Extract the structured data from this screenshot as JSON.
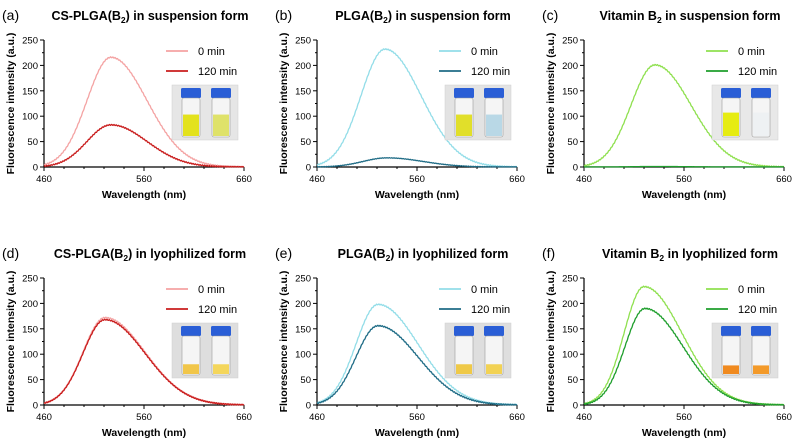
{
  "figure": {
    "legend_labels": [
      "0 min",
      "120 min"
    ],
    "xlabel": "Wavelength (nm)",
    "ylabel": "Fluorescence intensity (a.u.)"
  },
  "chart_data": [
    {
      "id": "a",
      "panel_label": "(a)",
      "type": "line",
      "title_parts": [
        "CS-PLGA(B",
        "2",
        ") in suspension form"
      ],
      "xlabel": "Wavelength (nm)",
      "ylabel": "Fluorescence intensity (a.u.)",
      "xlim": [
        460,
        660
      ],
      "ylim": [
        0,
        250
      ],
      "xticks": [
        460,
        560,
        660
      ],
      "yticks": [
        0,
        50,
        100,
        150,
        200,
        250
      ],
      "inset": "vial photo: yellow suspensions",
      "colors": [
        "#f4a3a3",
        "#c91d1d"
      ],
      "series": [
        {
          "name": "0 min",
          "peak_wavelength": 527,
          "peak_intensity": 216,
          "sigma_left": 24,
          "sigma_right": 36
        },
        {
          "name": "120 min",
          "peak_wavelength": 527,
          "peak_intensity": 83,
          "sigma_left": 24,
          "sigma_right": 36
        }
      ]
    },
    {
      "id": "b",
      "panel_label": "(b)",
      "type": "line",
      "title_parts": [
        "PLGA(B",
        "2",
        ") in suspension form"
      ],
      "xlabel": "Wavelength (nm)",
      "ylabel": "Fluorescence intensity (a.u.)",
      "xlim": [
        460,
        660
      ],
      "ylim": [
        0,
        250
      ],
      "xticks": [
        460,
        560,
        660
      ],
      "yticks": [
        0,
        50,
        100,
        150,
        200,
        250
      ],
      "inset": "vial photo: yellow and pale blue suspensions",
      "colors": [
        "#93dde8",
        "#1f6c86"
      ],
      "series": [
        {
          "name": "0 min",
          "peak_wavelength": 528,
          "peak_intensity": 232,
          "sigma_left": 24,
          "sigma_right": 36
        },
        {
          "name": "120 min",
          "peak_wavelength": 530,
          "peak_intensity": 18,
          "sigma_left": 24,
          "sigma_right": 36
        }
      ]
    },
    {
      "id": "c",
      "panel_label": "(c)",
      "type": "line",
      "title_parts": [
        "Vitamin B",
        "2",
        " in suspension form"
      ],
      "xlabel": "Wavelength (nm)",
      "ylabel": "Fluorescence intensity (a.u.)",
      "xlim": [
        460,
        660
      ],
      "ylim": [
        0,
        250
      ],
      "xticks": [
        460,
        560,
        660
      ],
      "yticks": [
        0,
        50,
        100,
        150,
        200,
        250
      ],
      "inset": "vial photo: yellow and clear solutions",
      "colors": [
        "#8fe04f",
        "#1e9e2c"
      ],
      "series": [
        {
          "name": "0 min",
          "peak_wavelength": 531,
          "peak_intensity": 201,
          "sigma_left": 24,
          "sigma_right": 36
        },
        {
          "name": "120 min",
          "peak_wavelength": 531,
          "peak_intensity": 1,
          "sigma_left": 24,
          "sigma_right": 36
        }
      ]
    },
    {
      "id": "d",
      "panel_label": "(d)",
      "type": "line",
      "title_parts": [
        "CS-PLGA(B",
        "2",
        ") in lyophilized form"
      ],
      "xlabel": "Wavelength (nm)",
      "ylabel": "Fluorescence intensity (a.u.)",
      "xlim": [
        460,
        660
      ],
      "ylim": [
        0,
        250
      ],
      "xticks": [
        460,
        560,
        660
      ],
      "yticks": [
        0,
        50,
        100,
        150,
        200,
        250
      ],
      "inset": "vial photo: yellow powders",
      "colors": [
        "#f4a3a3",
        "#c91d1d"
      ],
      "series": [
        {
          "name": "0 min",
          "peak_wavelength": 521,
          "peak_intensity": 172,
          "sigma_left": 22,
          "sigma_right": 40
        },
        {
          "name": "120 min",
          "peak_wavelength": 521,
          "peak_intensity": 168,
          "sigma_left": 22,
          "sigma_right": 40
        }
      ]
    },
    {
      "id": "e",
      "panel_label": "(e)",
      "type": "line",
      "title_parts": [
        "PLGA(B",
        "2",
        ") in lyophilized form"
      ],
      "xlabel": "Wavelength (nm)",
      "ylabel": "Fluorescence intensity (a.u.)",
      "xlim": [
        460,
        660
      ],
      "ylim": [
        0,
        250
      ],
      "xticks": [
        460,
        560,
        660
      ],
      "yticks": [
        0,
        50,
        100,
        150,
        200,
        250
      ],
      "inset": "vial photo: yellow powders",
      "colors": [
        "#93dde8",
        "#1f6c86"
      ],
      "series": [
        {
          "name": "0 min",
          "peak_wavelength": 521,
          "peak_intensity": 198,
          "sigma_left": 22,
          "sigma_right": 40
        },
        {
          "name": "120 min",
          "peak_wavelength": 521,
          "peak_intensity": 156,
          "sigma_left": 22,
          "sigma_right": 40
        }
      ]
    },
    {
      "id": "f",
      "panel_label": "(f)",
      "type": "line",
      "title_parts": [
        "Vitamin B",
        "2",
        " in lyophilized form"
      ],
      "xlabel": "Wavelength (nm)",
      "ylabel": "Fluorescence intensity (a.u.)",
      "xlim": [
        460,
        660
      ],
      "ylim": [
        0,
        250
      ],
      "xticks": [
        460,
        560,
        660
      ],
      "yticks": [
        0,
        50,
        100,
        150,
        200,
        250
      ],
      "inset": "vial photo: orange powders",
      "colors": [
        "#8fe04f",
        "#1e9e2c"
      ],
      "series": [
        {
          "name": "0 min",
          "peak_wavelength": 520,
          "peak_intensity": 233,
          "sigma_left": 20,
          "sigma_right": 38
        },
        {
          "name": "120 min",
          "peak_wavelength": 521,
          "peak_intensity": 190,
          "sigma_left": 20,
          "sigma_right": 38
        }
      ]
    }
  ]
}
